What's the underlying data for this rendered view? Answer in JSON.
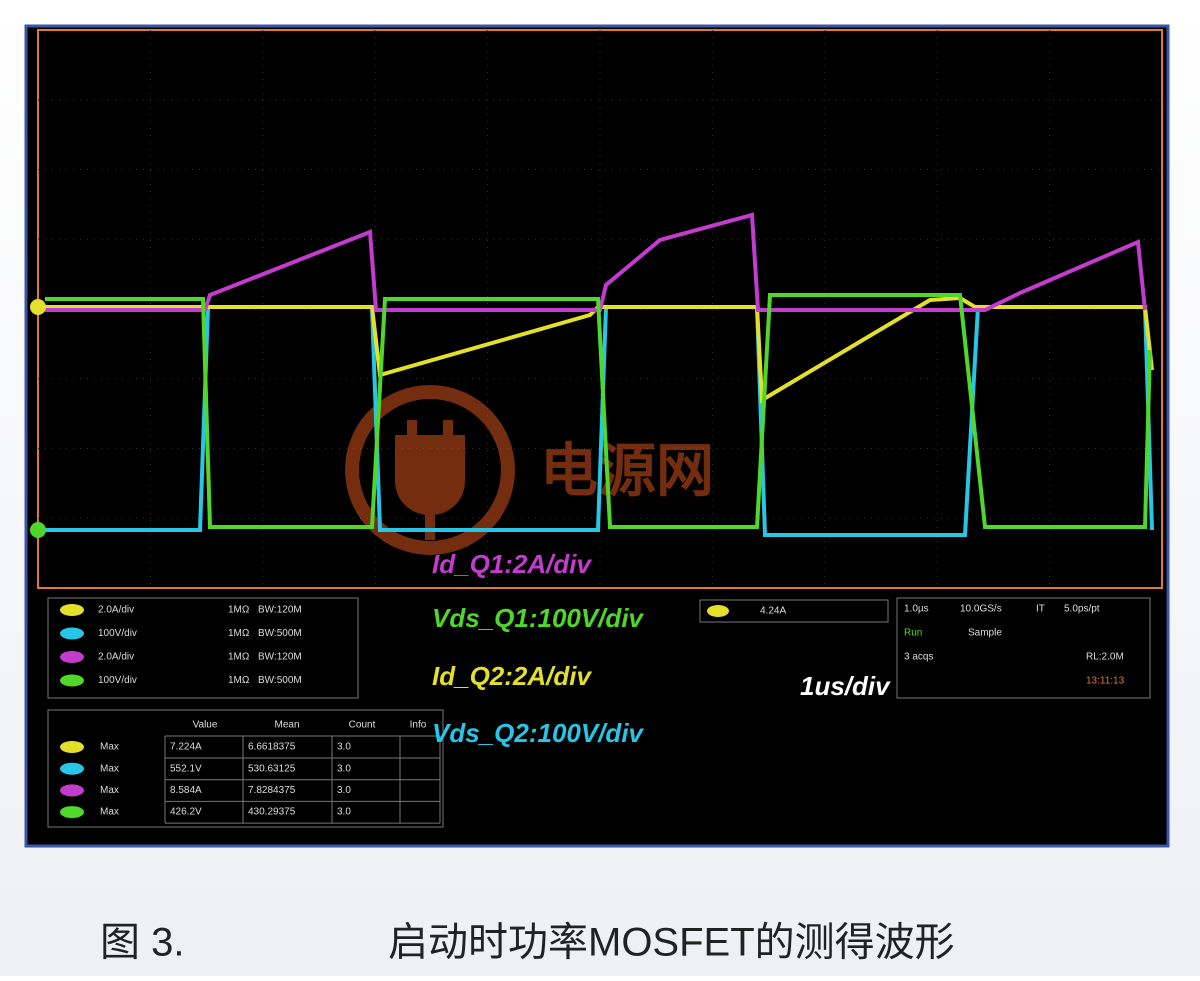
{
  "channels": [
    {
      "scale": "2.0A/div",
      "impedance": "1MΩ",
      "bandwidth": "BW:120M"
    },
    {
      "scale": "100V/div",
      "impedance": "1MΩ",
      "bandwidth": "BW:500M"
    },
    {
      "scale": "2.0A/div",
      "impedance": "1MΩ",
      "bandwidth": "BW:120M"
    },
    {
      "scale": "100V/div",
      "impedance": "1MΩ",
      "bandwidth": "BW:500M"
    }
  ],
  "trigger": {
    "level": "4.24A"
  },
  "timebase": {
    "scale": "1.0µs",
    "rate": "10.0GS/s",
    "mode": "IT",
    "resolution": "5.0ps/pt",
    "state": "Run",
    "acquisition": "Sample",
    "acqs": "3 acqs",
    "record": "RL:2.0M",
    "time": "13:11:13"
  },
  "measurements": {
    "headers": [
      "Value",
      "Mean",
      "Count",
      "Info"
    ],
    "rows": [
      [
        "Max",
        "7.224A",
        "6.6618375",
        "3.0"
      ],
      [
        "Max",
        "552.1V",
        "530.63125",
        "3.0"
      ],
      [
        "Max",
        "8.584A",
        "7.8284375",
        "3.0"
      ],
      [
        "Max",
        "426.2V",
        "430.29375",
        "3.0"
      ]
    ]
  },
  "annotations": {
    "id_q1": "Id_Q1:2A/div",
    "vds_q1": "Vds_Q1:100V/div",
    "id_q2": "Id_Q2:2A/div",
    "vds_q2": "Vds_Q2:100V/div",
    "time": "1us/div"
  },
  "watermark": "电源网",
  "caption": {
    "figure": "图 3.",
    "title": "启动时功率MOSFET的测得波形"
  }
}
